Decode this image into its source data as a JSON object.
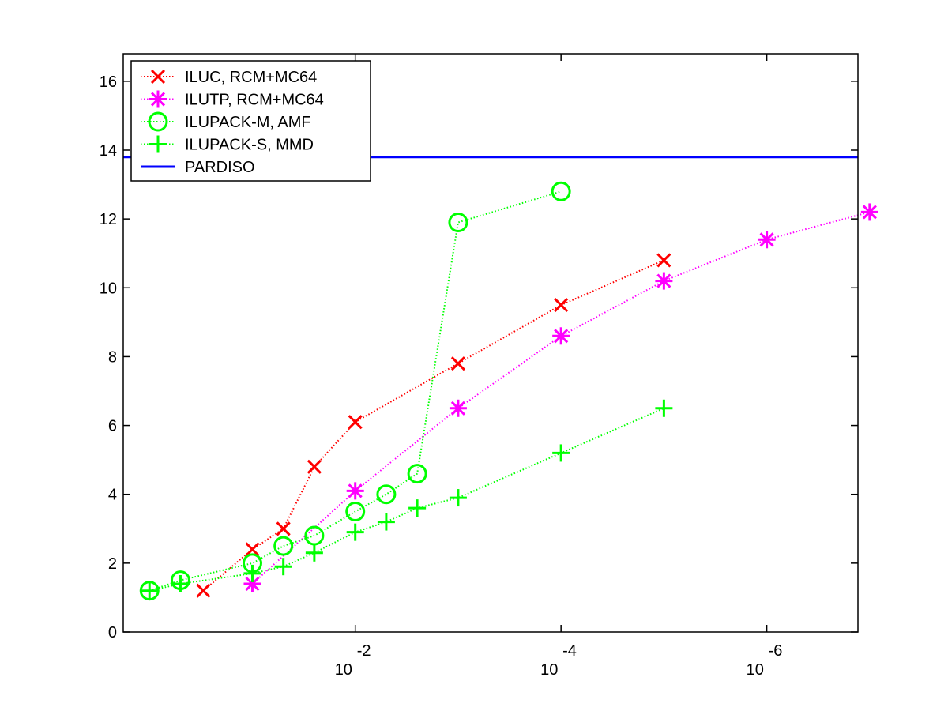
{
  "chart_data": {
    "type": "line",
    "title": "",
    "xlabel": "",
    "ylabel": "",
    "x_scale": "log",
    "x_reversed": true,
    "xlim": [
      1.8,
      1.3e-07
    ],
    "ylim": [
      0,
      16.8
    ],
    "yticks": [
      0,
      2,
      4,
      6,
      8,
      10,
      12,
      14,
      16
    ],
    "xticks": [
      {
        "value": 0.01,
        "base": "10",
        "exponent": "-2"
      },
      {
        "value": 0.0001,
        "base": "10",
        "exponent": "-4"
      },
      {
        "value": 1e-06,
        "base": "10",
        "exponent": "-6"
      }
    ],
    "grid": false,
    "legend_placement": "top-left",
    "series": [
      {
        "name": "ILUC, RCM+MC64",
        "color": "#ff0000",
        "marker": "x",
        "line_style": "dotted",
        "points": [
          [
            0.3,
            1.2
          ],
          [
            0.1,
            2.4
          ],
          [
            0.05,
            3.0
          ],
          [
            0.025,
            4.8
          ],
          [
            0.01,
            6.1
          ],
          [
            0.001,
            7.8
          ],
          [
            0.0001,
            9.5
          ],
          [
            1e-05,
            10.8
          ]
        ]
      },
      {
        "name": "ILUTP, RCM+MC64",
        "color": "#ff00ff",
        "marker": "asterisk",
        "line_style": "dotted",
        "points": [
          [
            0.1,
            1.4
          ],
          [
            0.01,
            4.1
          ],
          [
            0.001,
            6.5
          ],
          [
            0.0001,
            8.6
          ],
          [
            1e-05,
            10.2
          ],
          [
            1e-06,
            11.4
          ],
          [
            1e-07,
            12.2
          ]
        ]
      },
      {
        "name": "ILUPACK-M, AMF",
        "color": "#00ff00",
        "marker": "circle",
        "line_style": "dotted",
        "points": [
          [
            1,
            1.2
          ],
          [
            0.5,
            1.5
          ],
          [
            0.1,
            2.0
          ],
          [
            0.05,
            2.5
          ],
          [
            0.025,
            2.8
          ],
          [
            0.01,
            3.5
          ],
          [
            0.005,
            4.0
          ],
          [
            0.0025,
            4.6
          ],
          [
            0.001,
            11.9
          ],
          [
            0.0001,
            12.8
          ]
        ]
      },
      {
        "name": "ILUPACK-S, MMD",
        "color": "#00ff00",
        "marker": "plus",
        "line_style": "dotted",
        "points": [
          [
            1,
            1.2
          ],
          [
            0.5,
            1.4
          ],
          [
            0.1,
            1.7
          ],
          [
            0.05,
            1.9
          ],
          [
            0.025,
            2.3
          ],
          [
            0.01,
            2.9
          ],
          [
            0.005,
            3.2
          ],
          [
            0.0025,
            3.6
          ],
          [
            0.001,
            3.9
          ],
          [
            0.0001,
            5.2
          ],
          [
            1e-05,
            6.5
          ]
        ]
      },
      {
        "name": "PARDISO",
        "color": "#0000ff",
        "marker": "none",
        "line_style": "solid",
        "points": [
          [
            1.8,
            13.8
          ],
          [
            1.3e-07,
            13.8
          ]
        ]
      }
    ]
  }
}
